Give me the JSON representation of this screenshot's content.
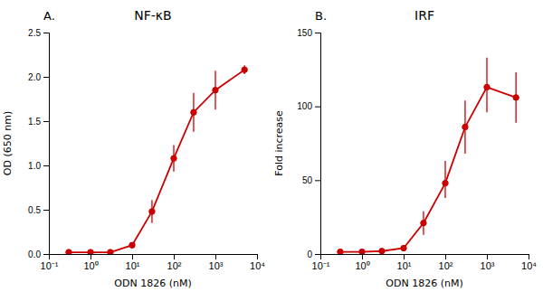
{
  "chart_data": [
    {
      "type": "line",
      "title": "NF-κB",
      "annotations": [
        "A."
      ],
      "x_label": "ODN 1826 (nM)",
      "y_label": "OD (650 nm)",
      "x": [
        0.3,
        1.0,
        3.0,
        10.0,
        30.0,
        100.0,
        300.0,
        1000.0,
        5000.0
      ],
      "series": [
        {
          "color": "#cc0000",
          "marker": "circle",
          "line_style": "solid",
          "values": [
            0.02,
            0.02,
            0.02,
            0.1,
            0.48,
            1.08,
            1.6,
            1.85,
            2.08
          ],
          "error_lo": [
            0.01,
            0.01,
            0.01,
            0.03,
            0.13,
            0.15,
            0.22,
            0.22,
            0.05
          ],
          "error_hi": [
            0.01,
            0.01,
            0.01,
            0.03,
            0.13,
            0.15,
            0.22,
            0.22,
            0.05
          ]
        }
      ],
      "log": "x",
      "xlim": [
        0.1,
        10000
      ],
      "xticks": [
        {
          "value": 0.1,
          "label": "10⁻¹"
        },
        {
          "value": 1,
          "label": "10⁰"
        },
        {
          "value": 10,
          "label": "10¹"
        },
        {
          "value": 100,
          "label": "10²"
        },
        {
          "value": 1000,
          "label": "10³"
        },
        {
          "value": 10000,
          "label": "10⁴"
        }
      ],
      "ylim": [
        0,
        2.5
      ],
      "yticks": [
        {
          "value": 0.0,
          "label": "0.0"
        },
        0.5,
        {
          "value": 1.0,
          "label": "1.0"
        },
        1.5,
        {
          "value": 2.0,
          "label": "2.0"
        },
        2.5
      ]
    },
    {
      "type": "line",
      "title": "IRF",
      "annotations": [
        "B."
      ],
      "x_label": "ODN 1826 (nM)",
      "y_label": "Fold increase",
      "x": [
        0.3,
        1.0,
        3.0,
        10.0,
        30.0,
        100.0,
        300.0,
        1000.0,
        5000.0
      ],
      "series": [
        {
          "color": "#cc0000",
          "marker": "circle",
          "line_style": "solid",
          "values": [
            1.5,
            1.5,
            2.0,
            4.0,
            21.0,
            48.0,
            86.0,
            113.0,
            106.0
          ],
          "error_lo": [
            0.5,
            0.5,
            0.5,
            1.0,
            8.0,
            10.0,
            18.0,
            17.0,
            17.0
          ],
          "error_hi": [
            0.5,
            0.5,
            0.5,
            1.0,
            8.0,
            15.0,
            18.0,
            20.0,
            17.0
          ]
        }
      ],
      "log": "x",
      "xlim": [
        0.1,
        10000
      ],
      "xticks": [
        {
          "value": 0.1,
          "label": "10⁻¹"
        },
        {
          "value": 1,
          "label": "10⁰"
        },
        {
          "value": 10,
          "label": "10¹"
        },
        {
          "value": 100,
          "label": "10²"
        },
        {
          "value": 1000,
          "label": "10³"
        },
        {
          "value": 10000,
          "label": "10⁴"
        }
      ],
      "ylim": [
        0,
        150
      ],
      "yticks": [
        0,
        50,
        100,
        150
      ]
    }
  ]
}
